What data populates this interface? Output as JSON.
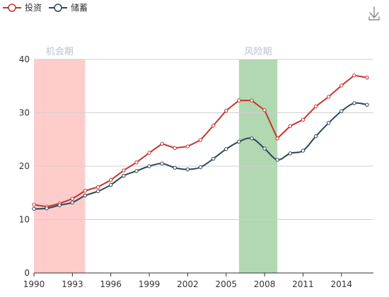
{
  "chart_data": {
    "type": "line",
    "title": "",
    "xlabel": "",
    "ylabel": "",
    "x": [
      1990,
      1991,
      1992,
      1993,
      1994,
      1995,
      1996,
      1997,
      1998,
      1999,
      2000,
      2001,
      2002,
      2003,
      2004,
      2005,
      2006,
      2007,
      2008,
      2009,
      2010,
      2011,
      2012,
      2013,
      2014,
      2015,
      2016
    ],
    "series": [
      {
        "name": "投资",
        "color": "#c23531",
        "smooth": false,
        "values": [
          12.8,
          12.4,
          13.0,
          13.9,
          15.4,
          16.1,
          17.4,
          19.2,
          20.7,
          22.5,
          24.2,
          23.4,
          23.7,
          24.9,
          27.6,
          30.4,
          32.3,
          32.3,
          30.5,
          25.2,
          27.5,
          28.7,
          31.2,
          33.0,
          35.1,
          37.0,
          36.6
        ]
      },
      {
        "name": "储蓄",
        "color": "#2f4554",
        "smooth": true,
        "values": [
          12.0,
          12.1,
          12.7,
          13.2,
          14.5,
          15.3,
          16.5,
          18.2,
          19.1,
          20.0,
          20.5,
          19.7,
          19.4,
          19.8,
          21.4,
          23.2,
          24.6,
          25.2,
          23.3,
          21.2,
          22.4,
          22.9,
          25.6,
          28.1,
          30.3,
          31.8,
          31.5
        ]
      }
    ],
    "ylim": [
      0,
      40
    ],
    "yticks": [
      0,
      10,
      20,
      30,
      40
    ],
    "xtick_labels": [
      "1990",
      "1993",
      "1996",
      "1999",
      "2002",
      "2005",
      "2008",
      "2011",
      "2014"
    ],
    "grid": "horizontal",
    "legend_position": "top-left",
    "mark_areas": [
      {
        "label": "机会期",
        "from": 1990,
        "to": 1994,
        "color": "#ffcccc"
      },
      {
        "label": "风险期",
        "from": 2006,
        "to": 2009,
        "color": "#b2d8b2"
      }
    ]
  },
  "toolbox": {
    "icon": "download-icon"
  }
}
